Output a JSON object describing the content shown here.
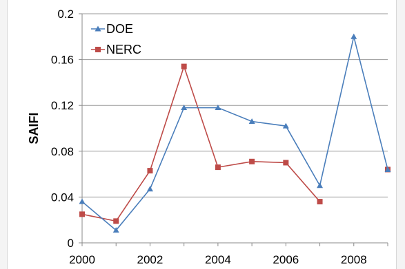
{
  "chart_data": {
    "type": "line",
    "x": [
      2000,
      2001,
      2002,
      2003,
      2004,
      2005,
      2006,
      2007,
      2008,
      2009
    ],
    "series": [
      {
        "name": "DOE",
        "color": "#4a7ebb",
        "marker": "triangle",
        "values": [
          0.036,
          0.011,
          0.047,
          0.118,
          0.118,
          0.106,
          0.102,
          0.05,
          0.18,
          0.064
        ]
      },
      {
        "name": "NERC",
        "color": "#be4b48",
        "marker": "square",
        "values": [
          0.025,
          0.019,
          0.063,
          0.154,
          0.066,
          0.071,
          0.07,
          0.036,
          null,
          0.064
        ]
      }
    ],
    "ylabel": "SAIFI",
    "ylim": [
      0,
      0.2
    ],
    "yticks": [
      "0",
      "0.04",
      "0.08",
      "0.12",
      "0.16",
      "0.2"
    ],
    "yticks_values": [
      0,
      0.04,
      0.08,
      0.12,
      0.16,
      0.2
    ],
    "xticks": [
      "2000",
      "2002",
      "2004",
      "2006",
      "2008"
    ],
    "xticks_values": [
      2000,
      2002,
      2004,
      2006,
      2008
    ],
    "xlim": [
      2000,
      2009
    ],
    "grid": "horizontal",
    "legend": "top-left"
  }
}
